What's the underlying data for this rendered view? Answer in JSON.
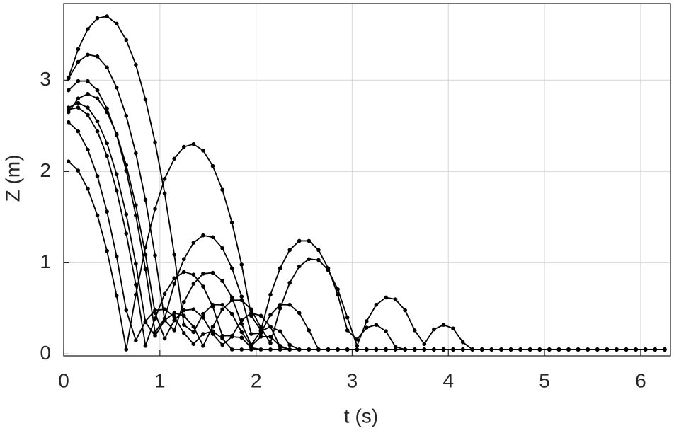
{
  "chart_data": {
    "type": "line",
    "xlabel": "t (s)",
    "ylabel": "Z (m)",
    "xlim": [
      0,
      6.31
    ],
    "ylim": [
      -0.02,
      3.84
    ],
    "xticks": [
      0,
      1,
      2,
      3,
      4,
      5,
      6
    ],
    "yticks": [
      0,
      1,
      2,
      3
    ],
    "grid": true,
    "markers": true,
    "x": [
      0.05,
      0.15,
      0.25,
      0.35,
      0.45,
      0.55,
      0.65,
      0.75,
      0.85,
      0.95,
      1.05,
      1.15,
      1.25,
      1.35,
      1.45,
      1.55,
      1.65,
      1.75,
      1.85,
      1.95,
      2.05,
      2.15,
      2.25,
      2.35,
      2.45,
      2.55,
      2.65,
      2.75,
      2.85,
      2.95,
      3.05,
      3.15,
      3.25,
      3.35,
      3.45,
      3.55,
      3.65,
      3.75,
      3.85,
      3.95,
      4.05,
      4.15,
      4.25,
      4.35,
      4.45,
      4.55,
      4.65,
      4.75,
      4.85,
      4.95,
      5.05,
      5.15,
      5.25,
      5.35,
      5.45,
      5.55,
      5.65,
      5.75,
      5.85,
      5.95,
      6.05,
      6.15,
      6.25
    ],
    "series": [
      {
        "color": "#000000",
        "values": [
          3.03,
          3.34,
          3.56,
          3.68,
          3.7,
          3.62,
          3.44,
          3.17,
          2.79,
          2.32,
          1.76,
          1.09,
          0.32,
          0.24,
          0.44,
          0.54,
          0.54,
          0.44,
          0.24,
          0.09,
          0.19,
          0.19,
          0.09,
          0.05,
          0.05,
          0.05,
          0.05,
          0.05,
          0.05,
          0.05,
          0.05,
          0.05,
          0.05,
          0.05,
          0.05,
          0.05,
          0.05,
          0.05,
          0.05,
          0.05,
          0.05,
          0.05,
          0.05,
          0.05,
          0.05,
          0.05,
          0.05,
          0.05,
          0.05,
          0.05,
          0.05,
          0.05,
          0.05,
          0.05,
          0.05,
          0.05,
          0.05,
          0.05,
          0.05,
          0.05,
          0.05,
          0.05,
          0.05
        ]
      },
      {
        "color": "#000000",
        "values": [
          3.02,
          3.2,
          3.28,
          3.26,
          3.14,
          2.92,
          2.61,
          2.2,
          1.69,
          1.08,
          0.37,
          0.26,
          0.57,
          0.77,
          0.88,
          0.89,
          0.8,
          0.62,
          0.33,
          0.1,
          0.25,
          0.3,
          0.25,
          0.1,
          0.05,
          0.05,
          0.05,
          0.05,
          0.05,
          0.05,
          0.05,
          0.05,
          0.05,
          0.05,
          0.05,
          0.05,
          0.05,
          0.05,
          0.05,
          0.05,
          0.05,
          0.05,
          0.05,
          0.05,
          0.05,
          0.05,
          0.05,
          0.05,
          0.05,
          0.05,
          0.05,
          0.05,
          0.05,
          0.05,
          0.05,
          0.05,
          0.05,
          0.05,
          0.05,
          0.05,
          0.05,
          0.05,
          0.05
        ]
      },
      {
        "color": "#000000",
        "values": [
          2.89,
          2.99,
          2.99,
          2.89,
          2.69,
          2.4,
          2.01,
          1.52,
          0.93,
          0.24,
          0.39,
          0.77,
          1.04,
          1.22,
          1.3,
          1.28,
          1.16,
          0.94,
          0.63,
          0.22,
          0.23,
          0.43,
          0.54,
          0.54,
          0.45,
          0.26,
          0.05,
          0.05,
          0.05,
          0.05,
          0.05,
          0.05,
          0.05,
          0.05,
          0.05,
          0.05,
          0.05,
          0.05,
          0.05,
          0.05,
          0.05,
          0.05,
          0.05,
          0.05,
          0.05,
          0.05,
          0.05,
          0.05,
          0.05,
          0.05,
          0.05,
          0.05,
          0.05,
          0.05,
          0.05,
          0.05,
          0.05,
          0.05,
          0.05,
          0.05,
          0.05,
          0.05,
          0.05
        ]
      },
      {
        "color": "#000000",
        "values": [
          2.11,
          2.01,
          1.81,
          1.52,
          1.13,
          0.64,
          0.05,
          0.65,
          1.17,
          1.59,
          1.92,
          2.14,
          2.27,
          2.3,
          2.23,
          2.06,
          1.8,
          1.44,
          0.98,
          0.42,
          0.26,
          0.65,
          0.94,
          1.14,
          1.24,
          1.24,
          1.14,
          0.94,
          0.65,
          0.26,
          0.16,
          0.29,
          0.32,
          0.25,
          0.08,
          0.05,
          0.05,
          0.05,
          0.05,
          0.05,
          0.05,
          0.05,
          0.05,
          0.05,
          0.05,
          0.05,
          0.05,
          0.05,
          0.05,
          0.05,
          0.05,
          0.05,
          0.05,
          0.05,
          0.05,
          0.05,
          0.05,
          0.05,
          0.05,
          0.05,
          0.05,
          0.05,
          0.05
        ]
      },
      {
        "color": "#000000",
        "values": [
          2.65,
          2.8,
          2.85,
          2.8,
          2.65,
          2.41,
          2.07,
          1.63,
          1.09,
          0.45,
          0.17,
          0.37,
          0.48,
          0.49,
          0.4,
          0.22,
          0.1,
          0.19,
          0.18,
          0.07,
          0.05,
          0.05,
          0.05,
          0.05,
          0.05,
          0.05,
          0.05,
          0.05,
          0.05,
          0.05,
          0.05,
          0.05,
          0.05,
          0.05,
          0.05,
          0.05,
          0.05,
          0.05,
          0.05,
          0.05,
          0.05,
          0.05,
          0.05,
          0.05,
          0.05,
          0.05,
          0.05,
          0.05,
          0.05,
          0.05,
          0.05,
          0.05,
          0.05,
          0.05,
          0.05,
          0.05,
          0.05,
          0.05,
          0.05,
          0.05,
          0.05,
          0.05,
          0.05
        ]
      },
      {
        "color": "#000000",
        "values": [
          2.7,
          2.75,
          2.7,
          2.55,
          2.31,
          1.97,
          1.53,
          0.99,
          0.35,
          0.2,
          0.37,
          0.45,
          0.42,
          0.3,
          0.09,
          0.3,
          0.49,
          0.59,
          0.59,
          0.49,
          0.29,
          0.12,
          0.5,
          0.78,
          0.96,
          1.04,
          1.03,
          0.92,
          0.71,
          0.4,
          0.09,
          0.36,
          0.54,
          0.62,
          0.6,
          0.48,
          0.26,
          0.11,
          0.27,
          0.32,
          0.28,
          0.13,
          0.05,
          0.05,
          0.05,
          0.05,
          0.05,
          0.05,
          0.05,
          0.05,
          0.05,
          0.05,
          0.05,
          0.05,
          0.05,
          0.05,
          0.05,
          0.05,
          0.05,
          0.05,
          0.05,
          0.05,
          0.05
        ]
      },
      {
        "color": "#000000",
        "values": [
          2.68,
          2.7,
          2.62,
          2.44,
          2.17,
          1.79,
          1.32,
          0.76,
          0.09,
          0.39,
          0.66,
          0.83,
          0.9,
          0.87,
          0.74,
          0.52,
          0.2,
          0.2,
          0.37,
          0.45,
          0.42,
          0.3,
          0.08,
          0.05,
          0.05,
          0.05,
          0.05,
          0.05,
          0.05,
          0.05,
          0.05,
          0.05,
          0.05,
          0.05,
          0.05,
          0.05,
          0.05,
          0.05,
          0.05,
          0.05,
          0.05,
          0.05,
          0.05,
          0.05,
          0.05,
          0.05,
          0.05,
          0.05,
          0.05,
          0.05,
          0.05,
          0.05,
          0.05,
          0.05,
          0.05,
          0.05,
          0.05,
          0.05,
          0.05,
          0.05,
          0.05,
          0.05,
          0.05
        ]
      },
      {
        "color": "#000000",
        "values": [
          2.54,
          2.44,
          2.24,
          1.95,
          1.56,
          1.07,
          0.48,
          0.15,
          0.36,
          0.48,
          0.49,
          0.41,
          0.23,
          0.11,
          0.22,
          0.25,
          0.17,
          0.05,
          0.05,
          0.05,
          0.05,
          0.05,
          0.05,
          0.05,
          0.05,
          0.05,
          0.05,
          0.05,
          0.05,
          0.05,
          0.05,
          0.05,
          0.05,
          0.05,
          0.05,
          0.05,
          0.05,
          0.05,
          0.05,
          0.05,
          0.05,
          0.05,
          0.05,
          0.05,
          0.05,
          0.05,
          0.05,
          0.05,
          0.05,
          0.05,
          0.05,
          0.05,
          0.05,
          0.05,
          0.05,
          0.05,
          0.05,
          0.05,
          0.05,
          0.05,
          0.05,
          0.05,
          0.05
        ]
      }
    ]
  }
}
